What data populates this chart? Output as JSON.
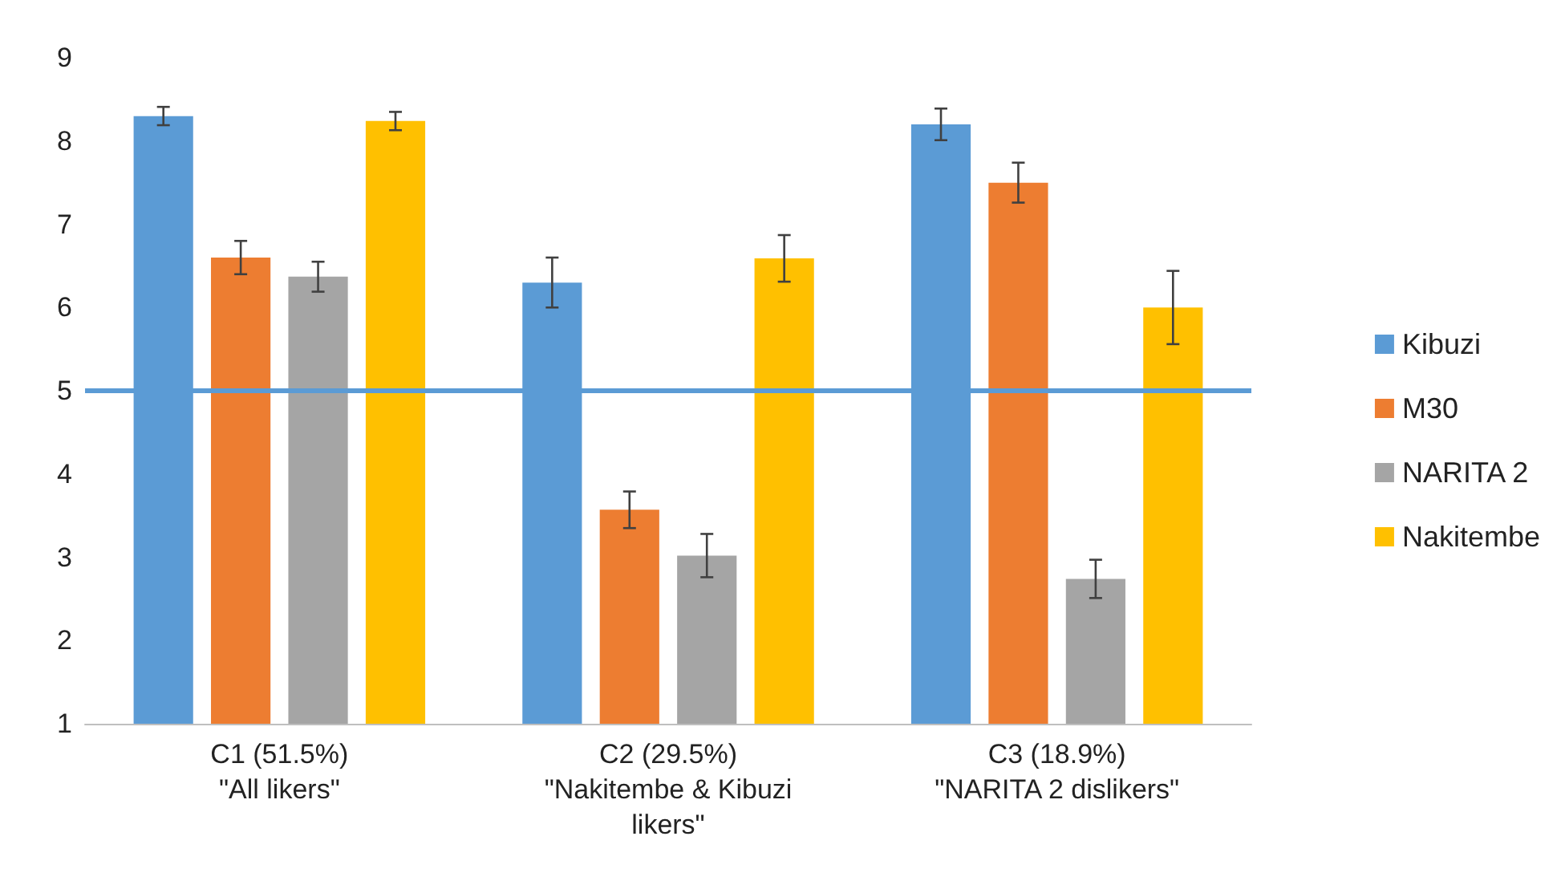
{
  "chart_data": {
    "type": "bar",
    "categories": [
      "C1 (51.5%)\n\"All likers\"",
      "C2 (29.5%)\n\"Nakitembe & Kibuzi\nlikers\"",
      "C3 (18.9%)\n\"NARITA 2 dislikers\""
    ],
    "series": [
      {
        "name": "Kibuzi",
        "color": "#5b9bd5",
        "values": [
          8.3,
          6.3,
          8.2
        ],
        "errors": [
          0.11,
          0.3,
          0.19
        ]
      },
      {
        "name": "M30",
        "color": "#ed7d31",
        "values": [
          6.6,
          3.57,
          7.5
        ],
        "errors": [
          0.2,
          0.22,
          0.24
        ]
      },
      {
        "name": "NARITA 2",
        "color": "#a5a5a5",
        "values": [
          6.37,
          3.02,
          2.74
        ],
        "errors": [
          0.18,
          0.26,
          0.23
        ]
      },
      {
        "name": "Nakitembe",
        "color": "#ffc000",
        "values": [
          8.24,
          6.59,
          6.0
        ],
        "errors": [
          0.11,
          0.28,
          0.44
        ]
      }
    ],
    "ylim": [
      1,
      9
    ],
    "yticks": [
      1,
      2,
      3,
      4,
      5,
      6,
      7,
      8,
      9
    ],
    "grid": false,
    "legend": "right",
    "ref_lines": [
      {
        "axis": "y",
        "value": 5,
        "color": "#5b9bd5"
      }
    ]
  }
}
